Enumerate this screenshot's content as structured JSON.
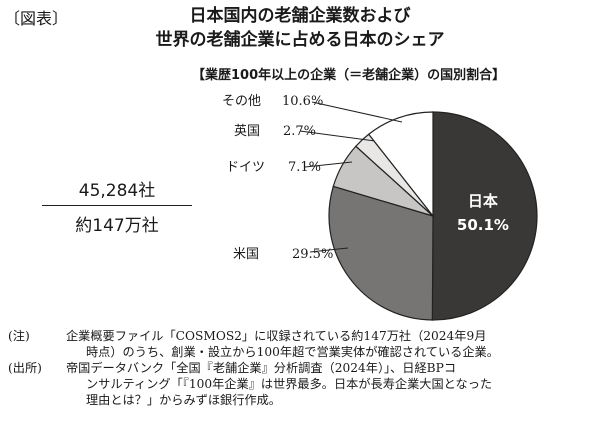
{
  "figure_label": "〔図表〕",
  "title_line1": "日本国内の老舗企業数および",
  "title_line2": "世界の老舗企業に占める日本のシェア",
  "fraction": {
    "numerator": "45,284社",
    "denominator": "約147万社"
  },
  "chart_data": {
    "type": "pie",
    "title": "【業歴100年以上の企業（＝老舗企業）の国別割合】",
    "slices": [
      {
        "label": "日本",
        "value_label": "50.1%",
        "value": 50.1,
        "color": "#3a3837"
      },
      {
        "label": "米国",
        "value_label": "29.5%",
        "value": 29.5,
        "color": "#777574"
      },
      {
        "label": "ドイツ",
        "value_label": "7.1%",
        "value": 7.1,
        "color": "#c8c6c5"
      },
      {
        "label": "英国",
        "value_label": "2.7%",
        "value": 2.7,
        "color": "#e8e7e6"
      },
      {
        "label": "その他",
        "value_label": "10.6%",
        "value": 10.6,
        "color": "#ffffff"
      }
    ]
  },
  "notes": {
    "note_head": "(注)",
    "note_line1": "企業概要ファイル「COSMOS2」に収録されている約147万社（2024年9月",
    "note_line2": "時点）のうち、創業・設立から100年超で営業実体が確認されている企業。",
    "source_head": "(出所)",
    "source_line1": "帝国データバンク「全国『老舗企業』分析調査（2024年）」、日経BPコ",
    "source_line2": "ンサルティング「『100年企業』は世界最多。日本が長寿企業大国となった",
    "source_line3": "理由とは？」からみずほ銀行作成。"
  }
}
